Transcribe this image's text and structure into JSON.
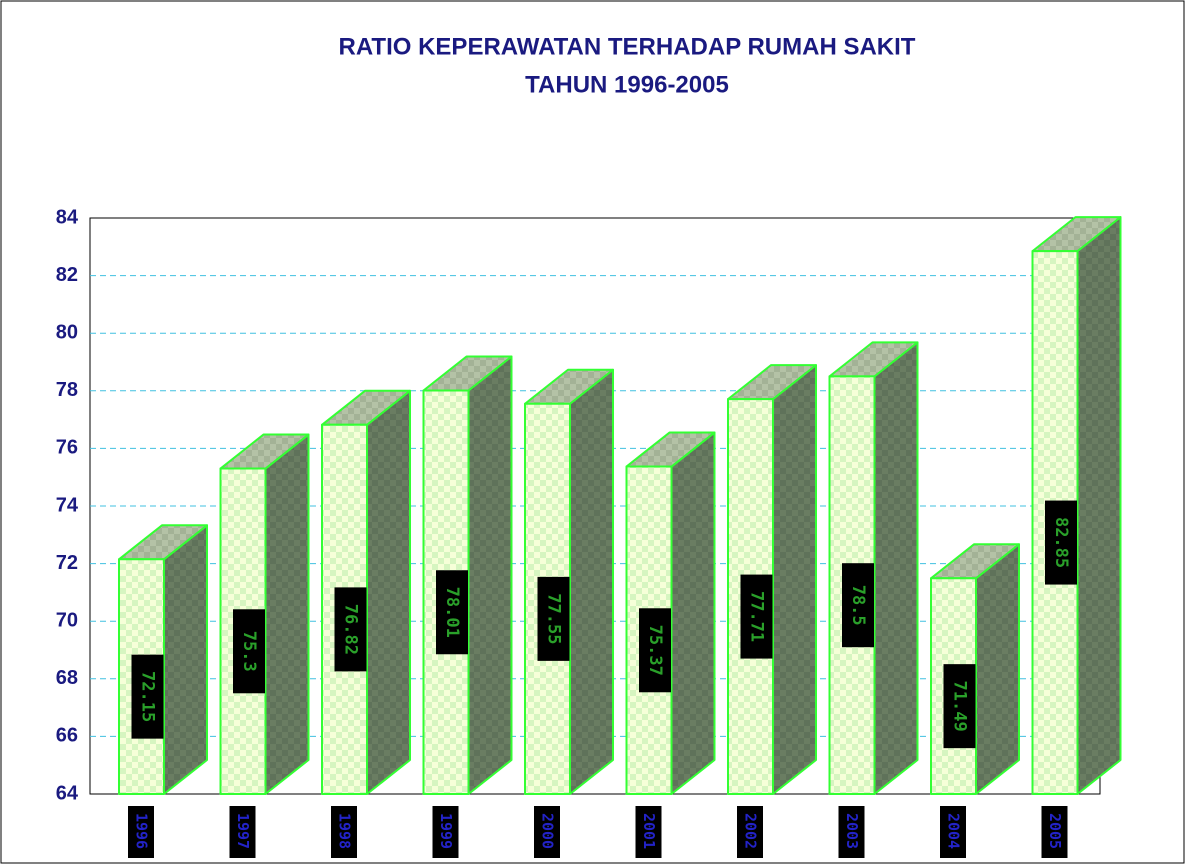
{
  "chart_data": {
    "type": "bar3d",
    "title": "RATIO KEPERAWATAN TERHADAP RUMAH SAKIT",
    "subtitle": "TAHUN 1996-2005",
    "categories": [
      "1996",
      "1997",
      "1998",
      "1999",
      "2000",
      "2001",
      "2002",
      "2003",
      "2004",
      "2005"
    ],
    "values": [
      72.15,
      75.3,
      76.82,
      78.01,
      77.55,
      75.37,
      77.71,
      78.5,
      71.49,
      82.85
    ],
    "color": "#33ff33",
    "ylim": [
      64,
      84
    ],
    "yticks": [
      64,
      66,
      68,
      70,
      72,
      74,
      76,
      78,
      80,
      82,
      84
    ],
    "grid": true
  }
}
